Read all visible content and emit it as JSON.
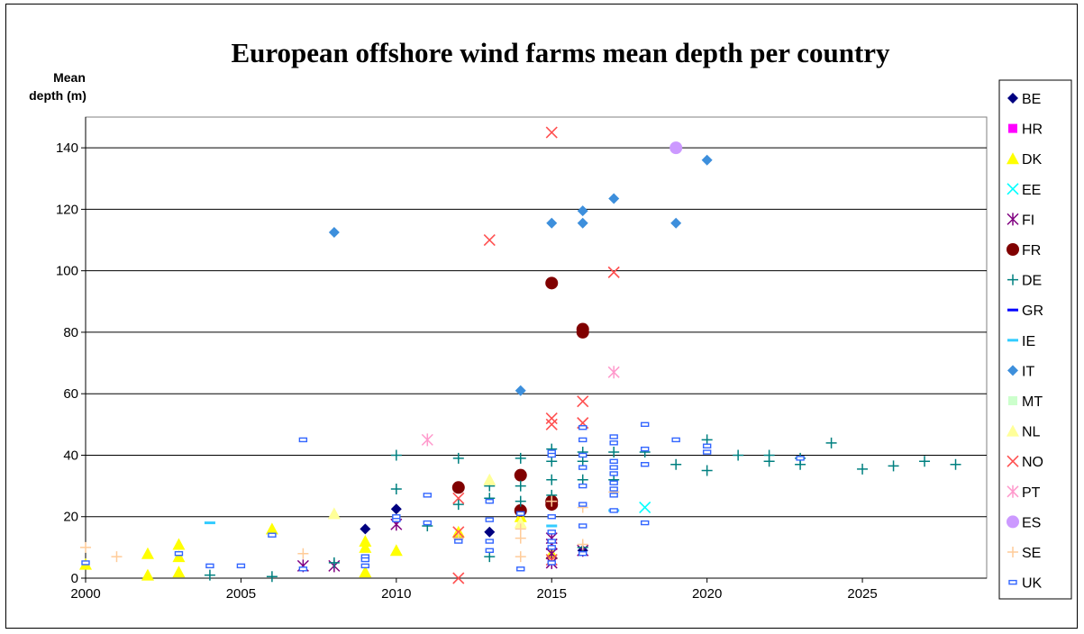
{
  "chart_data": {
    "type": "scatter",
    "title": "European offshore wind farms mean depth per country",
    "ylabel_line1": "Mean",
    "ylabel_line2": "depth (m)",
    "xlabel": "",
    "xlim": [
      2000,
      2029
    ],
    "ylim": [
      0,
      150
    ],
    "xticks": [
      2000,
      2005,
      2010,
      2015,
      2020,
      2025
    ],
    "yticks": [
      0,
      20,
      40,
      60,
      80,
      100,
      120,
      140
    ],
    "grid": "horizontal",
    "legend_position": "right",
    "series": [
      {
        "name": "BE",
        "color": "#000080",
        "marker": "diamond",
        "points": [
          [
            2009,
            16
          ],
          [
            2010,
            22.5
          ],
          [
            2012,
            13
          ],
          [
            2013,
            15
          ],
          [
            2015,
            25
          ],
          [
            2016,
            9
          ]
        ]
      },
      {
        "name": "HR",
        "color": "#ff00ff",
        "marker": "square",
        "points": []
      },
      {
        "name": "DK",
        "color": "#ffff00",
        "marker": "triangle",
        "points": [
          [
            2000,
            4.5
          ],
          [
            2002,
            1
          ],
          [
            2002,
            8
          ],
          [
            2003,
            11
          ],
          [
            2003,
            7
          ],
          [
            2003,
            2
          ],
          [
            2006,
            16
          ],
          [
            2009,
            12
          ],
          [
            2009,
            10
          ],
          [
            2009,
            2
          ],
          [
            2010,
            9
          ],
          [
            2012,
            15
          ],
          [
            2014,
            20
          ],
          [
            2015,
            8
          ]
        ]
      },
      {
        "name": "EE",
        "color": "#00ffff",
        "marker": "x",
        "points": [
          [
            2018,
            23
          ]
        ]
      },
      {
        "name": "FI",
        "color": "#800080",
        "marker": "star",
        "points": [
          [
            2007,
            4
          ],
          [
            2008,
            4
          ],
          [
            2010,
            17.5
          ],
          [
            2015,
            13
          ],
          [
            2015,
            11
          ],
          [
            2015,
            8
          ],
          [
            2015,
            5
          ],
          [
            2016,
            9
          ]
        ]
      },
      {
        "name": "FR",
        "color": "#800000",
        "marker": "circle",
        "points": [
          [
            2012,
            29.5
          ],
          [
            2014,
            33.5
          ],
          [
            2014,
            22
          ],
          [
            2015,
            96
          ],
          [
            2015,
            25
          ],
          [
            2015,
            24
          ],
          [
            2016,
            81
          ],
          [
            2016,
            80
          ]
        ]
      },
      {
        "name": "DE",
        "color": "#008080",
        "marker": "plus",
        "points": [
          [
            2004,
            1
          ],
          [
            2006,
            0.5
          ],
          [
            2008,
            5
          ],
          [
            2010,
            40
          ],
          [
            2010,
            29
          ],
          [
            2011,
            17
          ],
          [
            2012,
            39
          ],
          [
            2012,
            24
          ],
          [
            2013,
            30
          ],
          [
            2013,
            26
          ],
          [
            2013,
            7
          ],
          [
            2014,
            39
          ],
          [
            2014,
            30
          ],
          [
            2014,
            25
          ],
          [
            2015,
            42
          ],
          [
            2015,
            38
          ],
          [
            2015,
            32
          ],
          [
            2015,
            27
          ],
          [
            2016,
            41
          ],
          [
            2016,
            38
          ],
          [
            2016,
            32
          ],
          [
            2016,
            10
          ],
          [
            2017,
            41
          ],
          [
            2017,
            32
          ],
          [
            2018,
            41
          ],
          [
            2019,
            37
          ],
          [
            2020,
            45
          ],
          [
            2020,
            35
          ],
          [
            2021,
            40
          ],
          [
            2022,
            40
          ],
          [
            2022,
            38
          ],
          [
            2023,
            39
          ],
          [
            2023,
            37
          ],
          [
            2024,
            44
          ],
          [
            2025,
            35.5
          ],
          [
            2026,
            36.5
          ],
          [
            2027,
            38
          ],
          [
            2028,
            37
          ]
        ]
      },
      {
        "name": "GR",
        "color": "#0000ff",
        "marker": "dash",
        "points": []
      },
      {
        "name": "IE",
        "color": "#33ccff",
        "marker": "dash",
        "points": [
          [
            2004,
            18
          ],
          [
            2015,
            17
          ],
          [
            2017,
            22
          ]
        ]
      },
      {
        "name": "IT",
        "color": "#3d8fdc",
        "marker": "diamond",
        "points": [
          [
            2008,
            112.5
          ],
          [
            2014,
            61
          ],
          [
            2015,
            115.5
          ],
          [
            2016,
            119.5
          ],
          [
            2016,
            115.5
          ],
          [
            2017,
            123.5
          ],
          [
            2019,
            115.5
          ],
          [
            2020,
            136
          ]
        ]
      },
      {
        "name": "MT",
        "color": "#ccffcc",
        "marker": "square",
        "points": []
      },
      {
        "name": "NL",
        "color": "#ffff99",
        "marker": "triangle",
        "points": [
          [
            2008,
            21
          ],
          [
            2013,
            32
          ],
          [
            2014,
            18
          ]
        ]
      },
      {
        "name": "NO",
        "color": "#ff5050",
        "marker": "x",
        "points": [
          [
            2012,
            0
          ],
          [
            2012,
            15
          ],
          [
            2012,
            26
          ],
          [
            2013,
            110
          ],
          [
            2015,
            145
          ],
          [
            2015,
            52
          ],
          [
            2015,
            50
          ],
          [
            2015,
            6
          ],
          [
            2016,
            57.5
          ],
          [
            2016,
            50.5
          ],
          [
            2017,
            99.5
          ]
        ]
      },
      {
        "name": "PT",
        "color": "#ff99cc",
        "marker": "star",
        "points": [
          [
            2011,
            45
          ],
          [
            2017,
            67
          ]
        ]
      },
      {
        "name": "ES",
        "color": "#cc99ff",
        "marker": "circle",
        "points": [
          [
            2019,
            140
          ]
        ]
      },
      {
        "name": "SE",
        "color": "#ffcc99",
        "marker": "plus",
        "points": [
          [
            2000,
            10
          ],
          [
            2001,
            7
          ],
          [
            2007,
            8
          ],
          [
            2012,
            13
          ],
          [
            2014,
            16
          ],
          [
            2014,
            13
          ],
          [
            2014,
            7
          ],
          [
            2015,
            25
          ],
          [
            2016,
            23
          ],
          [
            2016,
            11
          ],
          [
            2017,
            28
          ]
        ]
      },
      {
        "name": "UK",
        "color": "#3366ff",
        "marker": "rect",
        "points": [
          [
            2000,
            5
          ],
          [
            2003,
            8
          ],
          [
            2004,
            4
          ],
          [
            2005,
            4
          ],
          [
            2006,
            14
          ],
          [
            2007,
            45
          ],
          [
            2007,
            3
          ],
          [
            2009,
            7
          ],
          [
            2009,
            6
          ],
          [
            2009,
            4
          ],
          [
            2010,
            19
          ],
          [
            2010,
            20
          ],
          [
            2011,
            18
          ],
          [
            2011,
            27
          ],
          [
            2012,
            12
          ],
          [
            2013,
            25
          ],
          [
            2013,
            19
          ],
          [
            2013,
            12
          ],
          [
            2013,
            9
          ],
          [
            2014,
            3
          ],
          [
            2014,
            21
          ],
          [
            2015,
            41
          ],
          [
            2015,
            40
          ],
          [
            2015,
            20
          ],
          [
            2015,
            15
          ],
          [
            2015,
            12
          ],
          [
            2015,
            10
          ],
          [
            2015,
            5
          ],
          [
            2016,
            49
          ],
          [
            2016,
            45
          ],
          [
            2016,
            40
          ],
          [
            2016,
            36
          ],
          [
            2016,
            30
          ],
          [
            2016,
            24
          ],
          [
            2016,
            17
          ],
          [
            2016,
            8
          ],
          [
            2017,
            46
          ],
          [
            2017,
            44
          ],
          [
            2017,
            38
          ],
          [
            2017,
            36
          ],
          [
            2017,
            34
          ],
          [
            2017,
            31
          ],
          [
            2017,
            29
          ],
          [
            2017,
            27
          ],
          [
            2017,
            22
          ],
          [
            2018,
            50
          ],
          [
            2018,
            42
          ],
          [
            2018,
            37
          ],
          [
            2018,
            18
          ],
          [
            2019,
            45
          ],
          [
            2020,
            43
          ],
          [
            2020,
            41
          ],
          [
            2023,
            39
          ]
        ]
      }
    ]
  }
}
